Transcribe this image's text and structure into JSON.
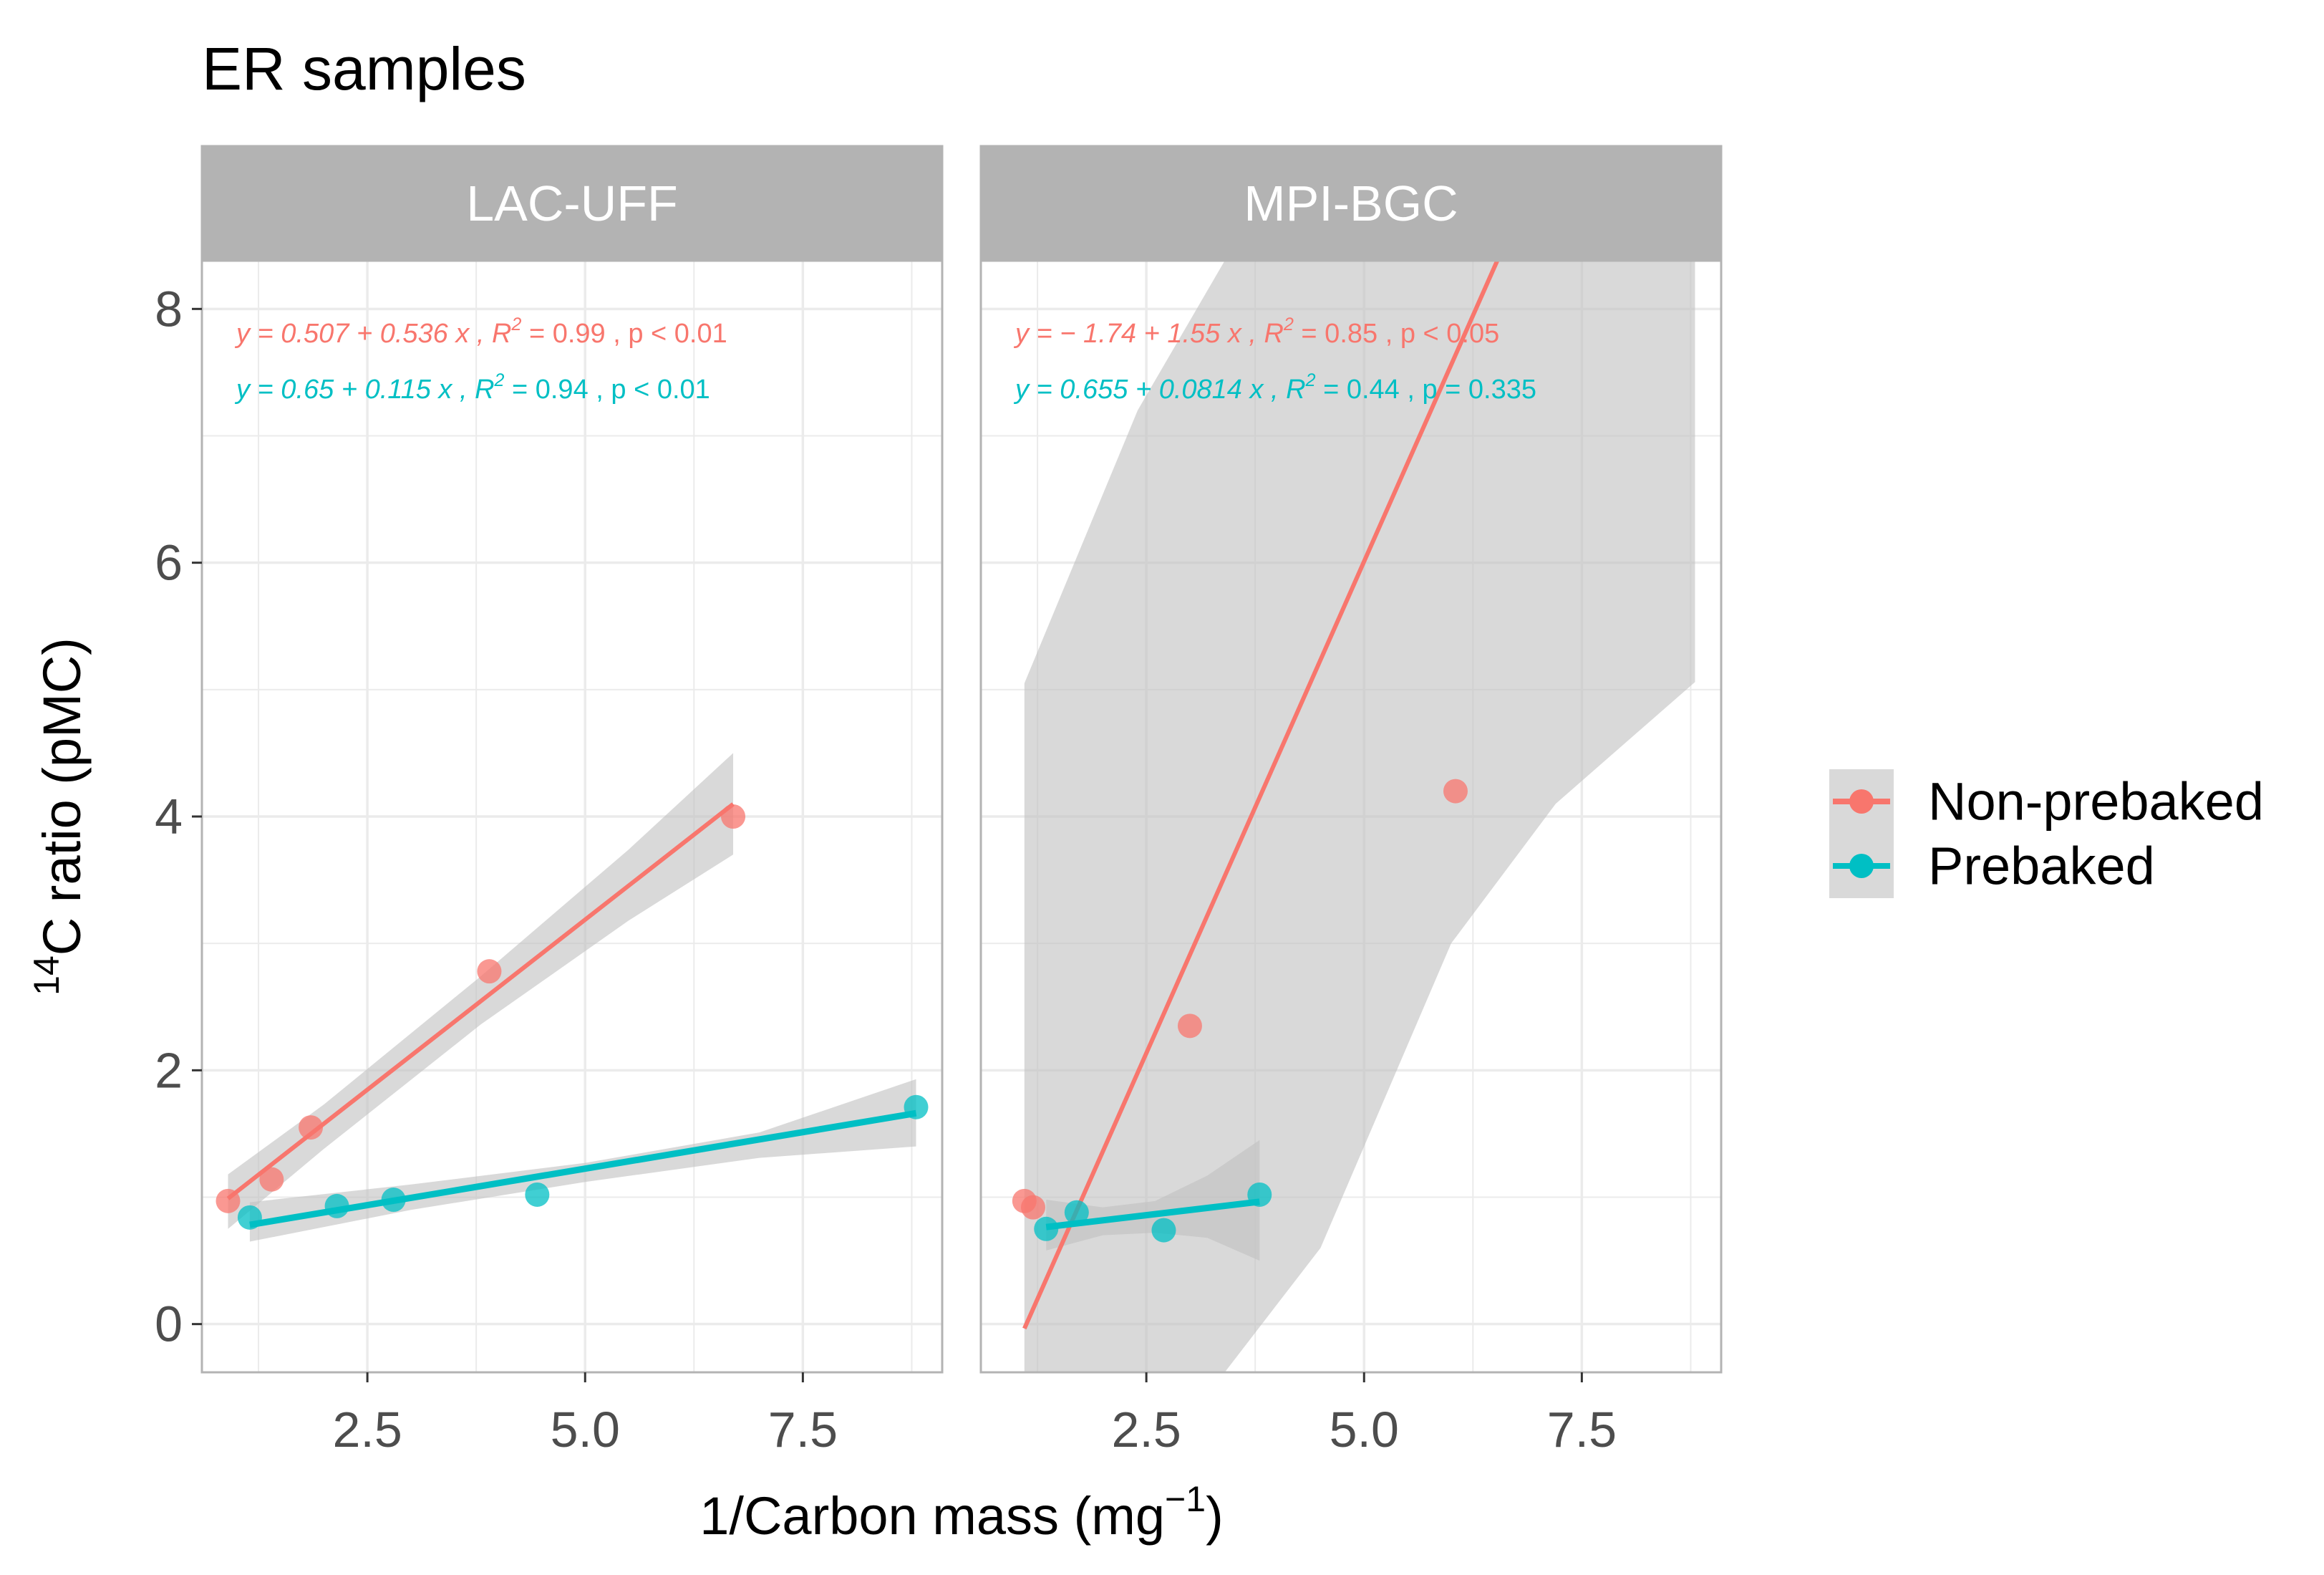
{
  "chart_data": {
    "type": "scatter",
    "title": "ER samples",
    "xlabel_main": "1/Carbon mass (mg",
    "xlabel_sup": "−1",
    "xlabel_close": ")",
    "ylabel_sup": "14",
    "ylabel_main": "C  ratio (pMC)",
    "xlim": [
      0.6,
      9.1
    ],
    "ylim": [
      -0.38,
      8.38
    ],
    "x_ticks": [
      2.5,
      5.0,
      7.5
    ],
    "x_tick_labels": [
      "2.5",
      "5.0",
      "7.5"
    ],
    "y_ticks": [
      0,
      2,
      4,
      6,
      8
    ],
    "y_tick_labels": [
      "0",
      "2",
      "4",
      "6",
      "8"
    ],
    "colors": {
      "non_prebaked": "#F8766D",
      "prebaked": "#00BFC4",
      "strip": "#B3B3B3",
      "ribbon": "#BFBFBF",
      "grid": "#EBEBEB",
      "border": "#B3B3B3",
      "text": "#4D4D4D"
    },
    "legend": {
      "position": "right",
      "entries": [
        {
          "label": "Non-prebaked",
          "series": "non_prebaked"
        },
        {
          "label": "Prebaked",
          "series": "prebaked"
        }
      ]
    },
    "panels": [
      {
        "strip": "LAC-UFF",
        "series": [
          {
            "name": "Non-prebaked",
            "key": "non_prebaked",
            "points": [
              [
                0.9,
                0.97
              ],
              [
                1.4,
                1.14
              ],
              [
                1.85,
                1.55
              ],
              [
                3.9,
                2.78
              ],
              [
                6.7,
                4.0
              ]
            ],
            "fit": {
              "intercept": 0.507,
              "slope": 0.536,
              "x_range": [
                0.9,
                6.7
              ]
            },
            "band": [
              [
                0.9,
                0.75,
                1.18
              ],
              [
                2.0,
                1.38,
                1.73
              ],
              [
                3.8,
                2.36,
                2.74
              ],
              [
                5.5,
                3.18,
                3.74
              ],
              [
                6.7,
                3.7,
                4.5
              ]
            ],
            "annotation": {
              "lead": "y = 0.507 + 0.536 x , ",
              "r": "R",
              "sup": "2",
              "tail": " = 0.99 , p < 0.01"
            }
          },
          {
            "name": "Prebaked",
            "key": "prebaked",
            "points": [
              [
                1.15,
                0.84
              ],
              [
                2.15,
                0.93
              ],
              [
                2.8,
                0.98
              ],
              [
                4.45,
                1.02
              ],
              [
                8.8,
                1.71
              ]
            ],
            "fit": {
              "intercept": 0.65,
              "slope": 0.115,
              "x_range": [
                1.15,
                8.8
              ]
            },
            "band": [
              [
                1.15,
                0.65,
                0.96
              ],
              [
                3.0,
                0.9,
                1.1
              ],
              [
                5.0,
                1.12,
                1.27
              ],
              [
                7.0,
                1.31,
                1.51
              ],
              [
                8.8,
                1.4,
                1.93
              ]
            ],
            "annotation": {
              "lead": "y = 0.65 + 0.115 x , ",
              "r": "R",
              "sup": "2",
              "tail": " = 0.94 , p < 0.01"
            }
          }
        ]
      },
      {
        "strip": "MPI-BGC",
        "series": [
          {
            "name": "Non-prebaked",
            "key": "non_prebaked",
            "points": [
              [
                1.1,
                0.97
              ],
              [
                1.2,
                0.92
              ],
              [
                3.0,
                2.35
              ],
              [
                6.05,
                4.2
              ]
            ],
            "fit": {
              "intercept": -1.74,
              "slope": 1.55,
              "x_range": [
                1.1,
                8.8
              ]
            },
            "band": [
              [
                1.1,
                -0.38,
                5.05
              ],
              [
                2.4,
                -0.38,
                7.2
              ],
              [
                3.4,
                -0.38,
                8.38
              ],
              [
                4.5,
                0.6,
                8.38
              ],
              [
                6.0,
                3.0,
                8.38
              ],
              [
                7.2,
                4.1,
                8.38
              ],
              [
                8.8,
                5.06,
                8.38
              ]
            ],
            "annotation": {
              "lead": "y = − 1.74 + 1.55 x , ",
              "r": "R",
              "sup": "2",
              "tail": " = 0.85 , p < 0.05"
            }
          },
          {
            "name": "Prebaked",
            "key": "prebaked",
            "points": [
              [
                1.35,
                0.75
              ],
              [
                1.7,
                0.88
              ],
              [
                2.7,
                0.74
              ],
              [
                3.8,
                1.02
              ]
            ],
            "fit": {
              "intercept": 0.655,
              "slope": 0.0814,
              "x_range": [
                1.35,
                3.8
              ]
            },
            "band": [
              [
                1.35,
                0.58,
                0.98
              ],
              [
                2.0,
                0.7,
                0.92
              ],
              [
                2.6,
                0.72,
                0.97
              ],
              [
                3.2,
                0.68,
                1.17
              ],
              [
                3.8,
                0.5,
                1.45
              ]
            ],
            "annotation": {
              "lead": "y = 0.655 + 0.0814 x , ",
              "r": "R",
              "sup": "2",
              "tail": " = 0.44 , p = 0.335"
            }
          }
        ]
      }
    ]
  }
}
